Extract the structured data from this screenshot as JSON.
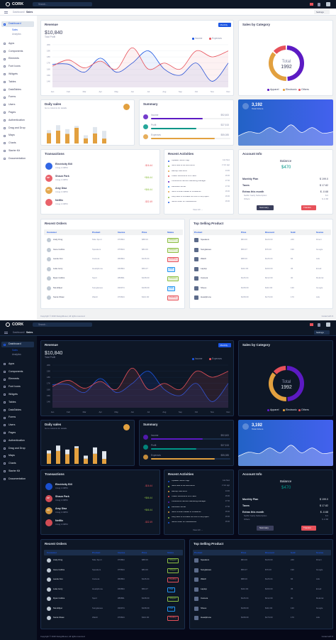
{
  "header": {
    "brand": "CORK",
    "search": "Search...",
    "settings": "Settings"
  },
  "breadcrumb": {
    "parent": "Dashboard",
    "separator": "/",
    "current": "Sales"
  },
  "sidebar": {
    "active": "Dashboard",
    "sub": [
      "Sales",
      "Analytics"
    ],
    "items": [
      "Apps",
      "Components",
      "Elements",
      "Font Icons",
      "Widgets",
      "Tables",
      "DataTables",
      "Forms",
      "Users",
      "Pages",
      "Authentication",
      "Drag and Drop",
      "Maps",
      "Charts",
      "Starter Kit",
      "Documentation"
    ]
  },
  "revenue_card": {
    "button": "Monthly",
    "total": "$10,840",
    "total_label": "Total Profit"
  },
  "chart_data": [
    {
      "type": "line",
      "title": "Revenue",
      "categories": [
        "Jan",
        "Feb",
        "Mar",
        "Apr",
        "May",
        "Jun",
        "Jul",
        "Aug",
        "Sep",
        "Oct",
        "Nov",
        "Dec"
      ],
      "series": [
        {
          "name": "Income",
          "color": "#1b55e2",
          "values": [
            16800,
            16800,
            15500,
            17800,
            15500,
            17000,
            19000,
            16000,
            15000,
            17000,
            14000,
            17000
          ]
        },
        {
          "name": "Expenses",
          "color": "#e7515a",
          "values": [
            16500,
            17500,
            16200,
            17300,
            16000,
            19500,
            16000,
            17000,
            16000,
            19000,
            18000,
            19000
          ]
        }
      ],
      "ylim": [
        13000,
        20000
      ],
      "yticks": [
        {
          "value": 14000,
          "label": "14K"
        },
        {
          "value": 15000,
          "label": "15K"
        },
        {
          "value": 16000,
          "label": "16K"
        },
        {
          "value": 17000,
          "label": "17K"
        },
        {
          "value": 18000,
          "label": "18K"
        },
        {
          "value": 19000,
          "label": "19K"
        },
        {
          "value": 20000,
          "label": "20K"
        }
      ],
      "grid": true
    },
    {
      "type": "donut",
      "title": "Sales by Category",
      "categories": [
        "Apparel",
        "Electronic",
        "Others"
      ],
      "values": [
        985,
        737,
        270
      ],
      "colors": [
        "#5c1ac3",
        "#e2a03f",
        "#e7515a"
      ],
      "center_label": "Total",
      "center_value": 1992
    },
    {
      "type": "stacked-bar",
      "title": "Daily sales",
      "subtitle": "Go to columns for details.",
      "categories": [
        null,
        null,
        null,
        null,
        null,
        null,
        null
      ],
      "series": [
        {
          "color": "#e2a03f",
          "values": [
            44,
            55,
            41,
            67,
            22,
            43,
            21
          ]
        },
        {
          "color": "#e0e6ed",
          "values": [
            13,
            23,
            20,
            8,
            13,
            27,
            33
          ]
        }
      ],
      "ylim": [
        0,
        100
      ]
    },
    {
      "type": "area",
      "title": "Total Orders",
      "headline": "3,192",
      "color": "#ffffff",
      "values": [
        28,
        40,
        36,
        52,
        38,
        60,
        38,
        52,
        36,
        40
      ],
      "ylim": [
        0,
        80
      ]
    }
  ],
  "summary": {
    "title": "Summary",
    "rows": [
      {
        "label": "Income",
        "value": "$92,600",
        "progress": 65,
        "color": "#5c1ac3"
      },
      {
        "label": "Profit",
        "value": "$37,515",
        "progress": 57,
        "color": "#009688"
      },
      {
        "label": "Expenses",
        "value": "$55,085",
        "progress": 80,
        "color": "#e2a03f"
      }
    ]
  },
  "transactions": {
    "title": "Transactions",
    "rows": [
      {
        "name": "Electricity Bill",
        "date": "4 Aug 1:00PM",
        "amount": "-$16.44",
        "color": "#1b55e2"
      },
      {
        "name": "Shaun Park",
        "initials": "SP",
        "date": "4 Aug 1:00PM",
        "amount": "+$66.44",
        "color": "#e7515a"
      },
      {
        "name": "Amy Diaz",
        "initials": "AD",
        "date": "4 Aug 1:00PM",
        "amount": "+$66.44",
        "color": "#e2a03f"
      },
      {
        "name": "Netflix",
        "date": "4 Aug 1:00PM",
        "amount": "-$32.49",
        "color": "#e7515a"
      }
    ]
  },
  "activities": {
    "title": "Recent Activities",
    "view_all": "View All →",
    "items": [
      {
        "text": "Updated Server Logs",
        "time": "Just Now",
        "color": "#1b55e2"
      },
      {
        "text": "Send Mail to HR and Admin",
        "time": "2 min ago",
        "color": "#8dbf42"
      },
      {
        "text": "Backup Files EOD",
        "time": "14:00",
        "color": "#e2a03f"
      },
      {
        "text": "Collect documents from Sara",
        "time": "16:00",
        "color": "#e7515a"
      },
      {
        "text": "Conference call with Marketing Manager.",
        "time": "17:00",
        "color": "#5c1ac3"
      },
      {
        "text": "Rebooted Server",
        "time": "17:00",
        "color": "#2196f3"
      },
      {
        "text": "Send contract details to Freelancer",
        "time": "16:00",
        "color": "#e2a03f"
      },
      {
        "text": "Kelly want to increase the time of the project.",
        "time": "16:00",
        "color": "#8dbf42"
      },
      {
        "text": "Server down for maintanence",
        "time": "16:00",
        "color": "#1b55e2"
      }
    ]
  },
  "account": {
    "title": "Account Info",
    "balance_label": "Balance",
    "balance": "$470",
    "rows": [
      {
        "label": "Monthly Plan",
        "value": "$ 199.0"
      },
      {
        "label": "Taxes",
        "value": "$ 17.82"
      },
      {
        "label": "Extras this month",
        "value": "$ -0.68"
      }
    ],
    "sub_rows": [
      {
        "label": "Netflix Yearly Subscription",
        "value": "$ 0"
      },
      {
        "label": "Others",
        "value": "$ -0.68"
      }
    ],
    "summary_button": "Summary",
    "transfer_button": "Transfer"
  },
  "orders": {
    "title": "Recent Orders",
    "columns": [
      "Customer",
      "Product",
      "Invoice",
      "Price",
      "Status"
    ],
    "rows": [
      [
        "Andy King",
        "Nike Sport",
        "#76894",
        "$88.00",
        "Shipped"
      ],
      [
        "Irene Collins",
        "Speakers",
        "#75844",
        "$84.00",
        "Shipped"
      ],
      [
        "Laurie Fox",
        "Camera",
        "#66894",
        "$126.04",
        "Pending"
      ],
      [
        "Luke Ivory",
        "Headphone",
        "#46894",
        "$56.07",
        "Paid"
      ],
      [
        "Ryan Collins",
        "Sport",
        "#89891",
        "$108.00",
        "Shipped"
      ],
      [
        "Nia Hillyer",
        "Sunglasses",
        "#26974",
        "$168.09",
        "Paid"
      ],
      [
        "Sonia Shaw",
        "Watch",
        "#76844",
        "$110.00",
        "Pending"
      ]
    ]
  },
  "top_selling": {
    "title": "Top Selling Product",
    "columns": [
      "Product",
      "Price",
      "Discount",
      "Sold",
      "Source"
    ],
    "rows": [
      [
        "Speakers",
        "$84.00",
        "$120.00",
        "240",
        "Direct"
      ],
      [
        "Sunglasses",
        "$56.07",
        "$76.00",
        "190",
        "Google"
      ],
      [
        "Watch",
        "$88.00",
        "$126.04",
        "66",
        "Ads"
      ],
      [
        "Laptop",
        "$110.00",
        "$160.00",
        "35",
        "Email"
      ],
      [
        "Camera",
        "$126.04",
        "$212.09",
        "30",
        "Referral"
      ],
      [
        "Shoes",
        "$108.09",
        "$110.00",
        "130",
        "Google"
      ],
      [
        "Headphone",
        "$168.09",
        "$170.00",
        "170",
        "Ads"
      ]
    ]
  },
  "footer": {
    "copyright": "Copyright © 2020 DesignReset, All rights reserved.",
    "coded": "Coded with ♥"
  }
}
